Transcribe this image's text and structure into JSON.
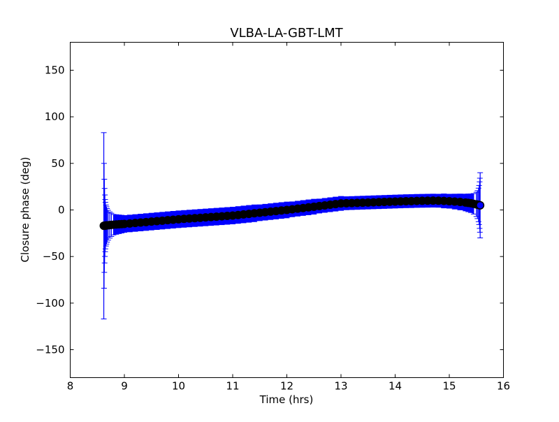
{
  "chart_data": {
    "type": "scatter",
    "title": "VLBA-LA-GBT-LMT",
    "xlabel": "Time (hrs)",
    "ylabel": "Closure phase (deg)",
    "xlim": [
      8,
      16
    ],
    "ylim": [
      -180,
      180
    ],
    "xticks": [
      8,
      9,
      10,
      11,
      12,
      13,
      14,
      15,
      16
    ],
    "yticks": [
      -150,
      -100,
      -50,
      0,
      50,
      100,
      150
    ],
    "ytick_labels": [
      "−150",
      "−100",
      "−50",
      "0",
      "50",
      "100",
      "150"
    ],
    "grid": false,
    "marker_color": "#000000",
    "errorbar_color": "#0000ff",
    "series": [
      {
        "name": "closure phase",
        "x": [
          8.62,
          8.625,
          8.63,
          8.635,
          8.64,
          8.645,
          8.65,
          8.66,
          8.67,
          8.68,
          8.7,
          8.73,
          8.76,
          8.8,
          8.85,
          8.9,
          8.95,
          9.0,
          9.1,
          9.2,
          9.3,
          9.4,
          9.5,
          9.6,
          9.7,
          9.8,
          9.9,
          10.0,
          10.1,
          10.2,
          10.3,
          10.4,
          10.5,
          10.6,
          10.7,
          10.8,
          10.9,
          11.0,
          11.1,
          11.2,
          11.3,
          11.4,
          11.5,
          11.6,
          11.7,
          11.8,
          11.9,
          12.0,
          12.1,
          12.2,
          12.3,
          12.4,
          12.5,
          12.6,
          12.7,
          12.8,
          12.9,
          13.0,
          13.1,
          13.2,
          13.3,
          13.4,
          13.5,
          13.6,
          13.7,
          13.8,
          13.9,
          14.0,
          14.1,
          14.2,
          14.3,
          14.4,
          14.5,
          14.6,
          14.7,
          14.8,
          14.9,
          15.0,
          15.1,
          15.2,
          15.3,
          15.35,
          15.4,
          15.45,
          15.5,
          15.52,
          15.54,
          15.55,
          15.56,
          15.565,
          15.57
        ],
        "y": [
          -17,
          -17,
          -17,
          -16.9,
          -16.9,
          -16.8,
          -16.8,
          -16.7,
          -16.6,
          -16.5,
          -16.4,
          -16.2,
          -16,
          -15.8,
          -15.6,
          -15.4,
          -15.2,
          -15,
          -14.5,
          -14,
          -13.5,
          -13,
          -12.5,
          -12,
          -11.5,
          -11,
          -10.5,
          -10,
          -9.6,
          -9.2,
          -8.8,
          -8.4,
          -8,
          -7.6,
          -7.2,
          -6.8,
          -6.4,
          -6,
          -5.4,
          -4.8,
          -4.2,
          -3.6,
          -3,
          -2.4,
          -1.8,
          -1.2,
          -0.6,
          0,
          0.7,
          1.4,
          2.1,
          2.8,
          3.5,
          4.2,
          4.9,
          5.6,
          6.3,
          7,
          7.2,
          7.4,
          7.6,
          7.8,
          8,
          8.2,
          8.4,
          8.6,
          8.8,
          9,
          9.2,
          9.4,
          9.5,
          9.7,
          9.8,
          9.9,
          10,
          9.9,
          9.7,
          9.4,
          9,
          8.6,
          8,
          7.6,
          7.2,
          6.6,
          6,
          5.7,
          5.4,
          5.3,
          5.2,
          5.1,
          5
        ],
        "err": [
          100,
          67,
          50,
          40,
          33,
          28,
          25,
          22,
          20,
          18,
          16,
          14,
          12.5,
          11,
          10.5,
          10,
          9.5,
          9,
          9,
          9,
          9,
          9,
          9,
          9,
          9,
          9,
          9,
          9,
          9,
          9,
          9,
          9,
          9,
          9,
          9,
          9,
          9,
          9,
          9,
          9,
          9,
          9,
          8.5,
          8.5,
          8.5,
          8.5,
          8.5,
          8.5,
          8,
          8,
          8,
          8,
          8,
          7.5,
          7.5,
          7.5,
          7.5,
          7.5,
          7,
          7,
          7,
          7,
          7,
          7,
          7,
          7,
          7,
          7,
          7,
          7,
          7,
          7,
          7,
          7,
          7,
          7,
          7.5,
          7.5,
          8,
          8.5,
          9,
          9.5,
          10,
          11,
          13,
          15,
          18,
          21,
          25,
          29,
          35
        ]
      }
    ]
  }
}
